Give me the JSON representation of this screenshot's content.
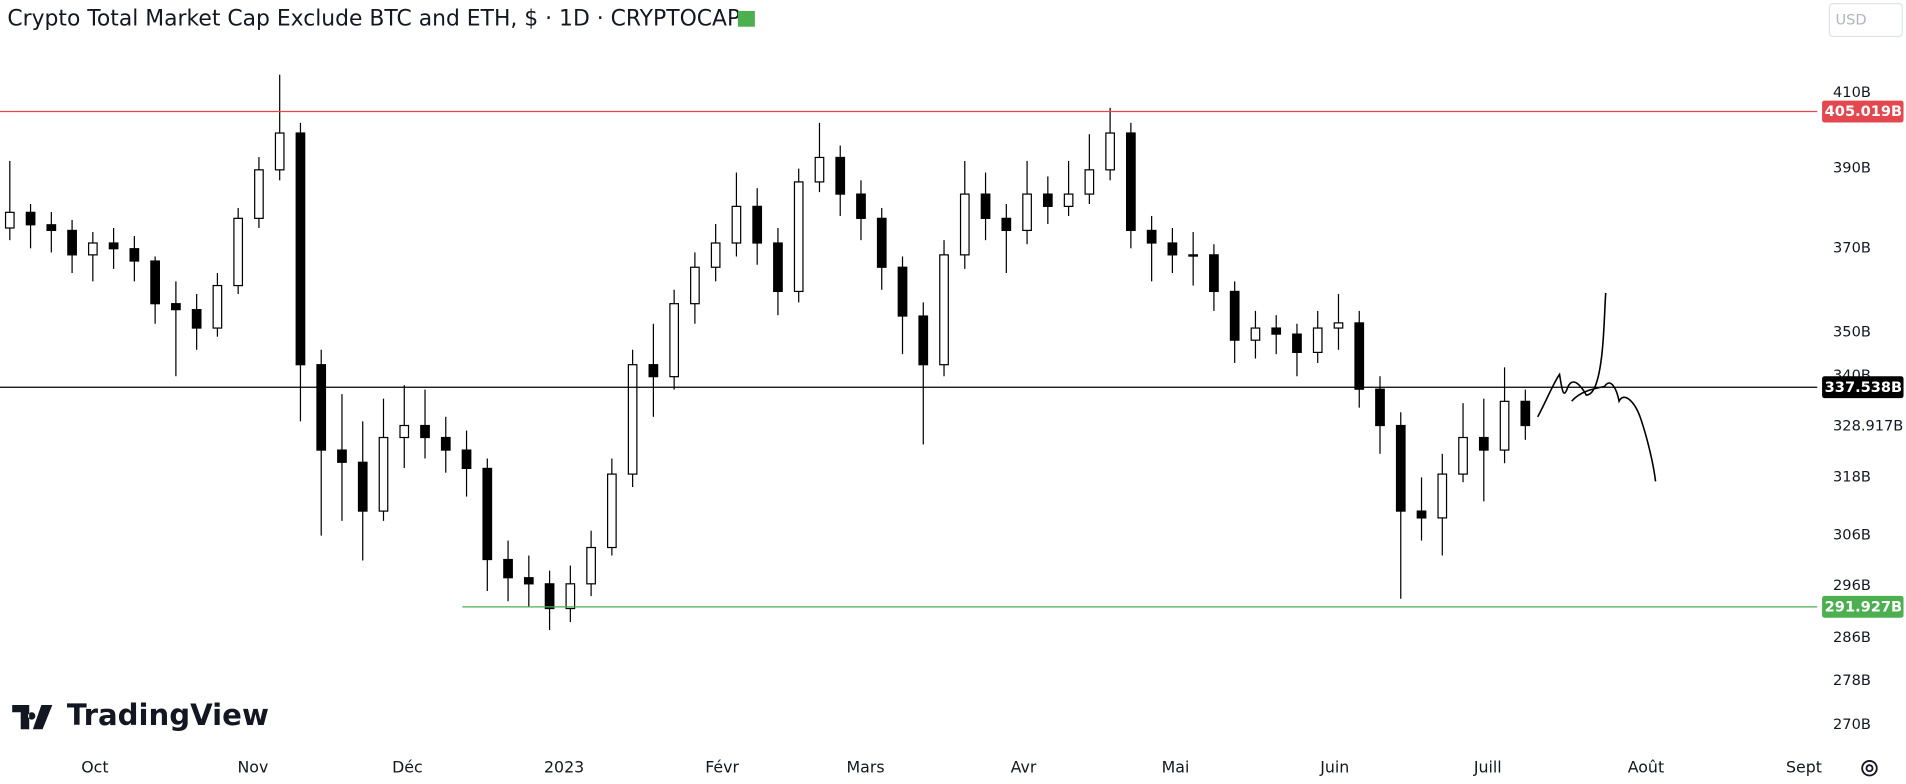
{
  "chart_data": {
    "type": "candlestick",
    "title": "Crypto Total Market Cap Exclude BTC and ETH, $ · 1D · CRYPTOCAP",
    "currency": "USD",
    "watermark": "TradingView",
    "log_scale": true,
    "up_color": "#ffffff",
    "down_color": "#000000",
    "ylim": [
      266,
      436
    ],
    "yticks": [
      {
        "value": 410,
        "label": "410B"
      },
      {
        "value": 390,
        "label": "390B"
      },
      {
        "value": 370,
        "label": "370B"
      },
      {
        "value": 350,
        "label": "350B"
      },
      {
        "value": 340,
        "label": "340B"
      },
      {
        "value": 318,
        "label": "318B"
      },
      {
        "value": 306,
        "label": "306B"
      },
      {
        "value": 296,
        "label": "296B"
      },
      {
        "value": 286,
        "label": "286B"
      },
      {
        "value": 278,
        "label": "278B"
      },
      {
        "value": 270,
        "label": "270B"
      }
    ],
    "xlim": [
      -0.47,
      87.06
    ],
    "xticks": [
      {
        "value": 4.1,
        "label": "Oct"
      },
      {
        "value": 11.71,
        "label": "Nov"
      },
      {
        "value": 19.15,
        "label": "Déc"
      },
      {
        "value": 26.7,
        "label": "2023"
      },
      {
        "value": 34.31,
        "label": "Févr"
      },
      {
        "value": 41.22,
        "label": "Mars"
      },
      {
        "value": 48.83,
        "label": "Avr"
      },
      {
        "value": 56.15,
        "label": "Mai"
      },
      {
        "value": 63.82,
        "label": "Juin"
      },
      {
        "value": 71.19,
        "label": "Juill"
      },
      {
        "value": 78.81,
        "label": "Août"
      },
      {
        "value": 86.42,
        "label": "Sept"
      }
    ],
    "last_price": {
      "value": 328.917,
      "label": "328.917B"
    },
    "lines": [
      {
        "value": 405.019,
        "label": "405.019B",
        "color": "#e5474f",
        "x_start": -0.47
      },
      {
        "value": 337.538,
        "label": "337.538B",
        "color": "#000000",
        "x_start": -0.47
      },
      {
        "value": 291.927,
        "label": "291.927B",
        "color": "#4caf50",
        "x_start": 21.8
      }
    ],
    "open": [
      375.0,
      378.9,
      375.8,
      374.4,
      368.4,
      371.3,
      369.9,
      366.9,
      356.7,
      355.3,
      351.0,
      361.0,
      377.4,
      389.7,
      399.3,
      342.6,
      323.8,
      321.2,
      311.0,
      326.5,
      329.1,
      326.5,
      323.8,
      319.9,
      301.2,
      297.6,
      296.4,
      291.6,
      296.4,
      303.6,
      318.7,
      342.6,
      339.9,
      356.7,
      365.4,
      371.3,
      380.4,
      371.3,
      359.6,
      386.6,
      392.9,
      383.5,
      377.4,
      365.4,
      353.8,
      342.6,
      368.4,
      383.5,
      377.4,
      374.4,
      383.5,
      380.4,
      383.5,
      389.7,
      399.3,
      374.4,
      371.3,
      368.4,
      368.4,
      359.6,
      348.2,
      351.0,
      349.6,
      345.4,
      351.0,
      352.2,
      337.1,
      329.1,
      311.0,
      309.6,
      318.7,
      326.5,
      323.8,
      334.4
    ],
    "high": [
      392,
      381,
      379,
      377,
      374,
      375,
      373,
      368,
      362,
      359,
      364,
      380,
      393,
      415,
      402,
      346,
      336,
      330,
      335,
      338,
      337,
      331,
      328,
      322,
      305,
      302,
      299,
      300,
      307,
      322,
      346,
      352,
      360,
      369,
      376,
      389,
      385,
      375,
      390,
      402,
      396,
      387,
      380,
      368,
      357,
      372,
      392,
      389,
      381,
      392,
      388,
      392,
      399,
      406,
      402,
      378,
      375,
      374,
      371,
      362,
      355,
      354,
      352,
      355,
      359,
      355,
      340,
      332,
      318,
      323,
      334,
      335,
      342,
      337
    ],
    "low": [
      372,
      370,
      369,
      364,
      362,
      365,
      362,
      352,
      340,
      346,
      349,
      359,
      375,
      387,
      330,
      306,
      309,
      301,
      309,
      320,
      322,
      319,
      314,
      295,
      293,
      292,
      287.5,
      289,
      294,
      302,
      316,
      331,
      337,
      352,
      362,
      368,
      366,
      354,
      357,
      384,
      378,
      372,
      360,
      345,
      325,
      340,
      365,
      372,
      364,
      371,
      376,
      378,
      381,
      387,
      370,
      362,
      364,
      361,
      355,
      343,
      344,
      345,
      340,
      343,
      346,
      333,
      323,
      293.5,
      305,
      302,
      317,
      313,
      321,
      326
    ],
    "close": [
      378.9,
      375.8,
      374.4,
      368.4,
      371.3,
      369.9,
      366.9,
      356.7,
      355.3,
      351.0,
      361.0,
      377.4,
      389.7,
      399.3,
      342.6,
      323.8,
      321.2,
      311.0,
      326.5,
      329.1,
      326.5,
      323.8,
      319.9,
      301.2,
      297.6,
      296.4,
      291.6,
      296.4,
      303.6,
      318.7,
      342.6,
      339.9,
      356.7,
      365.4,
      371.3,
      380.4,
      371.3,
      359.6,
      386.6,
      392.9,
      383.5,
      377.4,
      365.4,
      353.8,
      342.6,
      368.4,
      383.5,
      377.4,
      374.4,
      383.5,
      380.4,
      383.5,
      389.7,
      399.3,
      374.4,
      371.3,
      368.4,
      368.4,
      359.6,
      348.2,
      351.0,
      349.6,
      345.4,
      351.0,
      352.2,
      337.1,
      329.1,
      311.0,
      309.6,
      318.7,
      326.5,
      323.8,
      334.4,
      329.1
    ]
  }
}
